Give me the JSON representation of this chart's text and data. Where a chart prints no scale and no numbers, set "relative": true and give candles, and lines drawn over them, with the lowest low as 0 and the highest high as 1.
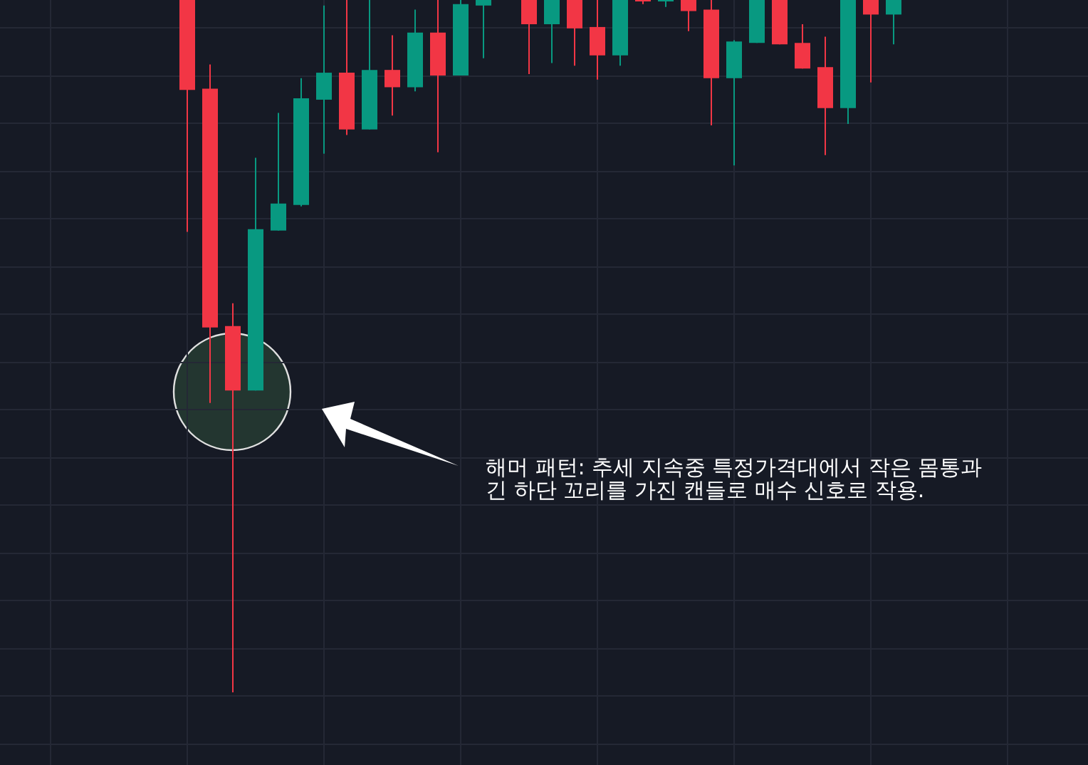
{
  "chart_data": {
    "type": "candlestick",
    "relative": true,
    "grid": true,
    "categories": [
      null,
      null,
      null,
      null,
      null,
      null,
      null,
      null,
      null,
      null,
      null,
      null,
      null,
      null,
      null,
      null,
      null,
      null,
      null,
      null,
      null,
      null,
      null,
      null,
      null,
      null,
      null,
      null,
      null,
      null,
      null,
      null
    ],
    "ohlc": [
      [
        1,
        1,
        0.665,
        0.87
      ],
      [
        0.872,
        0.907,
        0.418,
        0.527
      ],
      [
        0.529,
        0.562,
        0,
        0.436
      ],
      [
        0.436,
        0.772,
        0.436,
        0.669
      ],
      [
        0.667,
        0.837,
        0.667,
        0.706
      ],
      [
        0.704,
        0.887,
        0.702,
        0.858
      ],
      [
        0.856,
        0.992,
        0.778,
        0.895
      ],
      [
        0.895,
        1,
        0.805,
        0.813
      ],
      [
        0.813,
        1,
        0.813,
        0.899
      ],
      [
        0.899,
        0.949,
        0.833,
        0.874
      ],
      [
        0.874,
        0.986,
        0.868,
        0.953
      ],
      [
        0.953,
        1,
        0.78,
        0.891
      ],
      [
        0.891,
        1,
        0.891,
        0.994
      ],
      [
        0.992,
        1,
        0.916,
        1
      ],
      null,
      [
        1,
        1,
        0.893,
        0.965
      ],
      [
        0.965,
        1,
        0.909,
        1
      ],
      [
        1,
        1,
        0.905,
        0.959
      ],
      [
        0.961,
        1,
        0.885,
        0.92
      ],
      [
        0.92,
        1,
        0.905,
        1
      ],
      [
        1,
        1,
        0.994,
        0.998
      ],
      [
        0.998,
        1,
        0.99,
        1
      ],
      [
        1,
        1,
        0.955,
        0.984
      ],
      [
        0.986,
        1,
        0.819,
        0.887
      ],
      [
        0.887,
        0.942,
        0.761,
        0.94
      ],
      [
        0.938,
        1,
        0.938,
        1
      ],
      [
        1,
        1,
        0.936,
        0.936
      ],
      [
        0.938,
        0.965,
        0.901,
        0.901
      ],
      [
        0.903,
        0.947,
        0.776,
        0.844
      ],
      [
        0.844,
        1,
        0.821,
        1
      ],
      [
        1,
        1,
        0.881,
        0.979
      ],
      [
        0.979,
        1,
        0.936,
        1
      ]
    ],
    "colors": [
      "#f23645",
      "#f23645",
      "#f23645",
      "#089981",
      "#089981",
      "#089981",
      "#089981",
      "#f23645",
      "#089981",
      "#f23645",
      "#089981",
      "#f23645",
      "#089981",
      "#089981",
      null,
      "#f23645",
      "#089981",
      "#f23645",
      "#f23645",
      "#089981",
      "#f23645",
      "#089981",
      "#f23645",
      "#f23645",
      "#089981",
      "#089981",
      "#f23645",
      "#f23645",
      "#f23645",
      "#089981",
      "#f23645",
      "#089981"
    ],
    "annotations": [
      "해머 패턴: 추세 지속중 특정가격대에서 작은 몸통과\n긴 하단 꼬리를 가진 캔들로 매수 신호로 작용."
    ]
  }
}
